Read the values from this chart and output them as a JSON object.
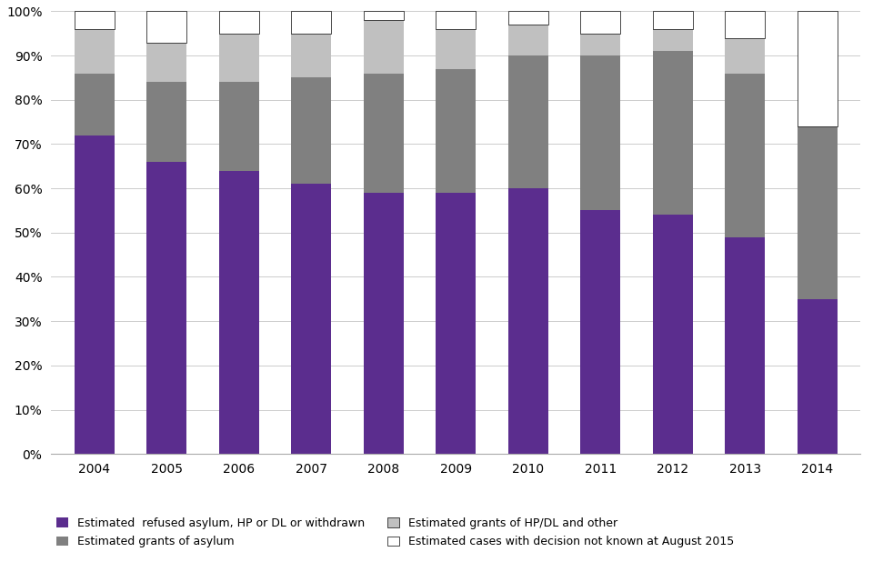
{
  "years": [
    "2004",
    "2005",
    "2006",
    "2007",
    "2008",
    "2009",
    "2010",
    "2011",
    "2012",
    "2013",
    "2014"
  ],
  "refused": [
    72,
    66,
    64,
    61,
    59,
    59,
    60,
    55,
    54,
    49,
    35
  ],
  "grants_asylum": [
    14,
    18,
    20,
    24,
    27,
    28,
    30,
    35,
    37,
    37,
    39
  ],
  "grants_hpdl": [
    10,
    9,
    11,
    10,
    12,
    9,
    7,
    5,
    5,
    8,
    0
  ],
  "unknown": [
    4,
    7,
    5,
    5,
    2,
    4,
    3,
    5,
    4,
    6,
    26
  ],
  "color_refused": "#5B2D8E",
  "color_grants_asylum": "#808080",
  "color_grants_hpdl": "#C0C0C0",
  "color_unknown": "#FFFFFF",
  "label_refused": "Estimated  refused asylum, HP or DL or withdrawn",
  "label_grants_asylum": "Estimated grants of asylum",
  "label_grants_hpdl": "Estimated grants of HP/DL and other",
  "label_unknown": "Estimated cases with decision not known at August 2015",
  "ylim": [
    0,
    100
  ],
  "yticks": [
    0,
    10,
    20,
    30,
    40,
    50,
    60,
    70,
    80,
    90,
    100
  ],
  "ytick_labels": [
    "0%",
    "10%",
    "20%",
    "30%",
    "40%",
    "50%",
    "60%",
    "70%",
    "80%",
    "90%",
    "100%"
  ]
}
